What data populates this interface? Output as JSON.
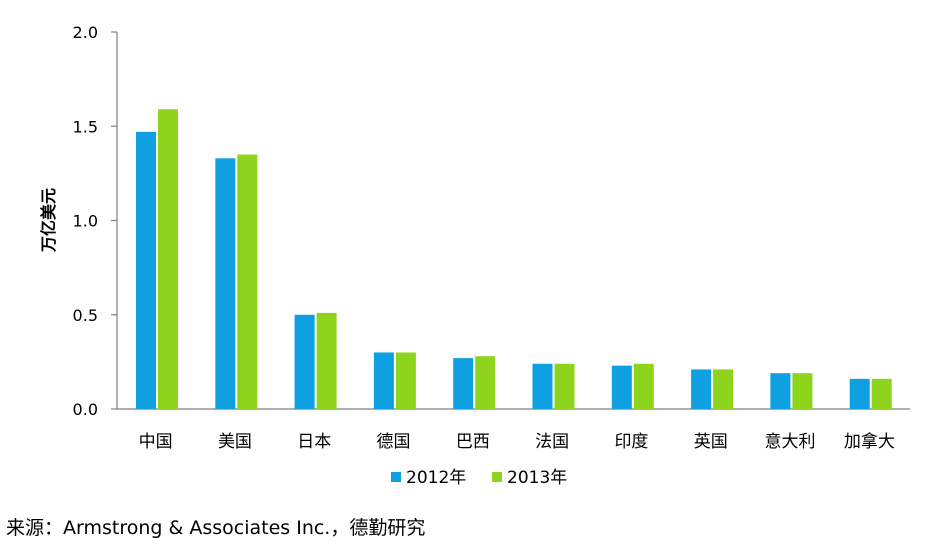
{
  "chart_data": {
    "type": "bar",
    "title": "",
    "xlabel": "",
    "ylabel": "万亿美元",
    "ylim": [
      0,
      2.0
    ],
    "yticks": [
      "0.0",
      "0.5",
      "1.0",
      "1.5",
      "2.0"
    ],
    "grid": false,
    "legend_position": "bottom",
    "categories": [
      "中国",
      "美国",
      "日本",
      "德国",
      "巴西",
      "法国",
      "印度",
      "英国",
      "意大利",
      "加拿大"
    ],
    "series": [
      {
        "name": "2012年",
        "color": "#0ea0e0",
        "values": [
          1.47,
          1.33,
          0.5,
          0.3,
          0.27,
          0.24,
          0.23,
          0.21,
          0.19,
          0.16
        ]
      },
      {
        "name": "2013年",
        "color": "#8fd41c",
        "values": [
          1.59,
          1.35,
          0.51,
          0.3,
          0.28,
          0.24,
          0.24,
          0.21,
          0.19,
          0.16
        ]
      }
    ]
  },
  "source_note": "来源：Armstrong & Associates Inc.，德勤研究"
}
